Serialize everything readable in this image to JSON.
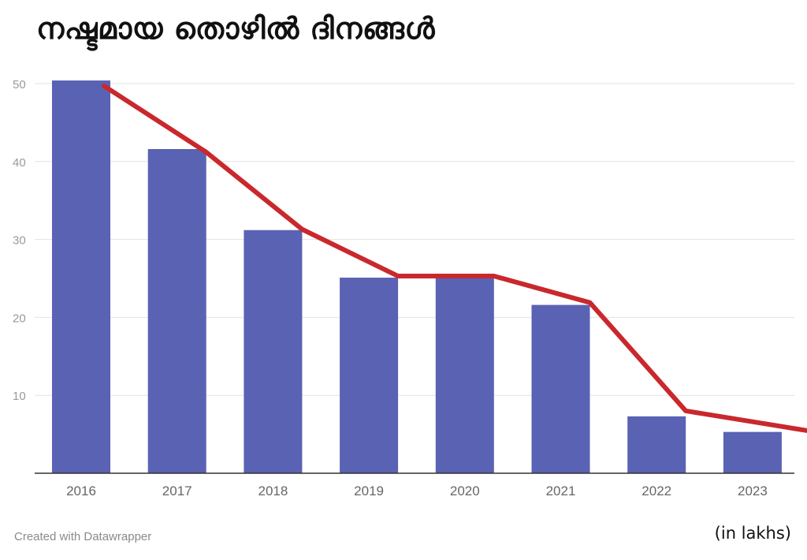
{
  "chart_data": {
    "type": "bar",
    "title": "നഷ്ടമായ തൊഴിൽ ദിനങ്ങൾ",
    "categories": [
      "2016",
      "2017",
      "2018",
      "2019",
      "2020",
      "2021",
      "2022",
      "2023"
    ],
    "values": [
      50.4,
      41.6,
      31.2,
      25.1,
      25.0,
      21.6,
      7.3,
      5.3
    ],
    "trend_values": [
      49.7,
      41.2,
      31.3,
      25.3,
      25.3,
      21.9,
      8.0,
      6.0
    ],
    "ylim": [
      0,
      50
    ],
    "yticks": [
      10,
      20,
      30,
      40,
      50
    ],
    "grid": true,
    "unit_note": "(in lakhs)",
    "colors": {
      "bar": "#5a62b3",
      "trend": "#c9282d",
      "grid": "#e3e3e3",
      "axis": "#333333",
      "tick_text": "#999999",
      "xtick_text": "#666666"
    }
  },
  "footer": {
    "credit": "Created with Datawrapper"
  }
}
